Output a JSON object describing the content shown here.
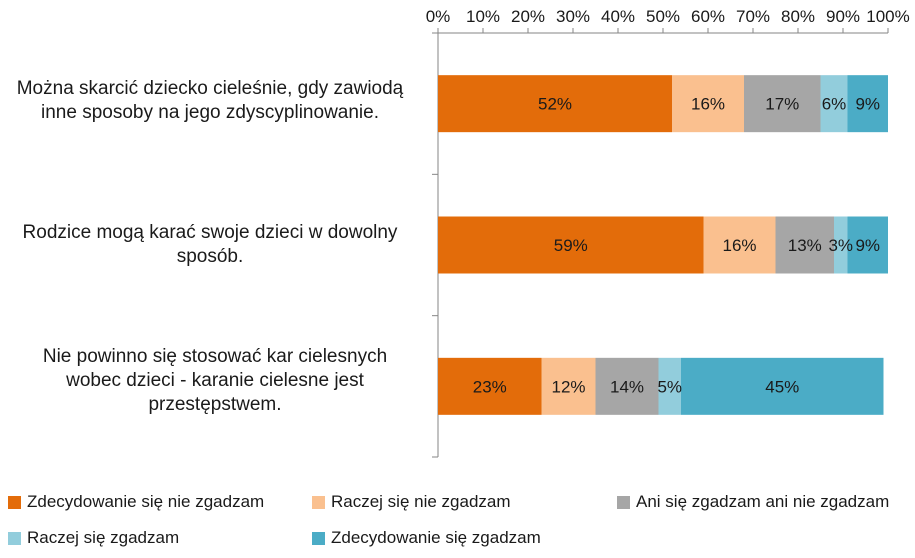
{
  "chart_data": {
    "type": "bar",
    "orientation": "horizontal",
    "stacked": "percent",
    "x_ticks": [
      "0%",
      "10%",
      "20%",
      "30%",
      "40%",
      "50%",
      "60%",
      "70%",
      "80%",
      "90%",
      "100%"
    ],
    "xlim": [
      0,
      100
    ],
    "grid": false,
    "legend_position": "bottom",
    "categories": [
      "Można skarcić dziecko cieleśnie, gdy zawiodą inne sposoby na jego zdyscyplinowanie.",
      "Rodzice mogą karać swoje dzieci w dowolny sposób.",
      "Nie powinno się stosować kar cielesnych wobec dzieci - karanie cielesne jest przestępstwem."
    ],
    "series": [
      {
        "name": "Zdecydowanie się nie zgadzam",
        "color": "#e36c0a",
        "values": [
          52,
          59,
          23
        ],
        "labels": [
          "52%",
          "59%",
          "23%"
        ]
      },
      {
        "name": "Raczej się nie zgadzam",
        "color": "#fac08f",
        "values": [
          16,
          16,
          12
        ],
        "labels": [
          "16%",
          "16%",
          "12%"
        ]
      },
      {
        "name": "Ani się zgadzam ani nie zgadzam",
        "color": "#a6a6a6",
        "values": [
          17,
          13,
          14
        ],
        "labels": [
          "17%",
          "13%",
          "14%"
        ]
      },
      {
        "name": "Raczej się zgadzam",
        "color": "#92cddc",
        "values": [
          6,
          3,
          5
        ],
        "labels": [
          "6%",
          "3%",
          "5%"
        ]
      },
      {
        "name": "Zdecydowanie się zgadzam",
        "color": "#4bacc6",
        "values": [
          9,
          9,
          45
        ],
        "labels": [
          "9%",
          "9%",
          "45%"
        ]
      }
    ]
  }
}
